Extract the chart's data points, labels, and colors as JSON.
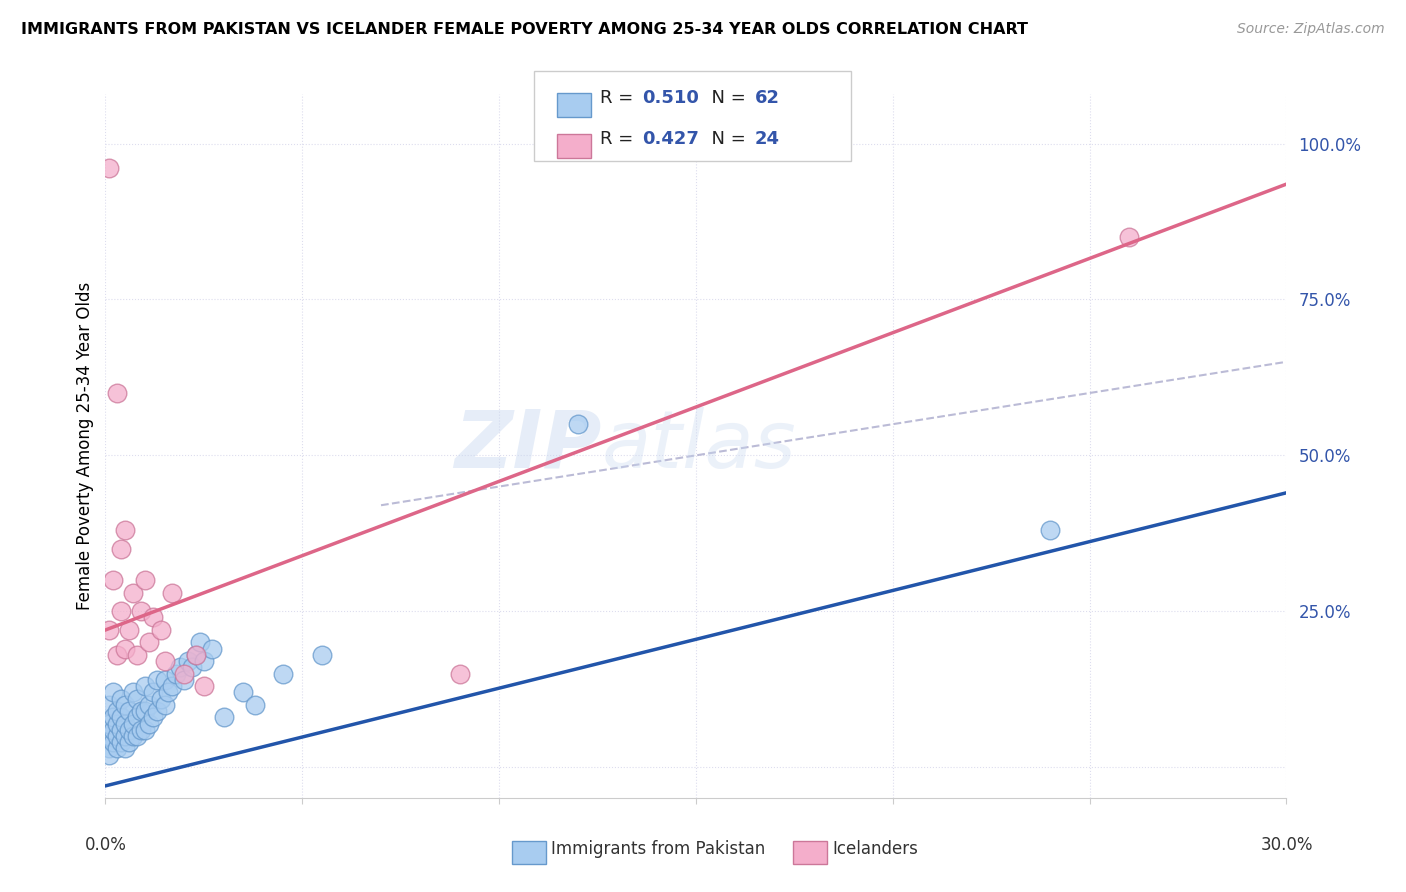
{
  "title": "IMMIGRANTS FROM PAKISTAN VS ICELANDER FEMALE POVERTY AMONG 25-34 YEAR OLDS CORRELATION CHART",
  "source": "Source: ZipAtlas.com",
  "ylabel": "Female Poverty Among 25-34 Year Olds",
  "xlim": [
    0.0,
    0.3
  ],
  "ylim": [
    -0.05,
    1.08
  ],
  "yticks": [
    0.0,
    0.25,
    0.5,
    0.75,
    1.0
  ],
  "ytick_labels": [
    "",
    "25.0%",
    "50.0%",
    "75.0%",
    "100.0%"
  ],
  "series1_name": "Immigrants from Pakistan",
  "series1_color": "#A8CCF0",
  "series1_edge_color": "#6699CC",
  "series1_line_color": "#2255AA",
  "series1_R": 0.51,
  "series1_N": 62,
  "series2_name": "Icelanders",
  "series2_color": "#F4AECB",
  "series2_edge_color": "#CC7799",
  "series2_line_color": "#DD6688",
  "series2_R": 0.427,
  "series2_N": 24,
  "ref_line_color": "#AAAACC",
  "background_color": "#FFFFFF",
  "grid_color": "#DDDDEE",
  "legend_color": "#3355AA",
  "blue_x": [
    0.001,
    0.001,
    0.001,
    0.001,
    0.001,
    0.002,
    0.002,
    0.002,
    0.002,
    0.003,
    0.003,
    0.003,
    0.003,
    0.004,
    0.004,
    0.004,
    0.004,
    0.005,
    0.005,
    0.005,
    0.005,
    0.006,
    0.006,
    0.006,
    0.007,
    0.007,
    0.007,
    0.008,
    0.008,
    0.008,
    0.009,
    0.009,
    0.01,
    0.01,
    0.01,
    0.011,
    0.011,
    0.012,
    0.012,
    0.013,
    0.013,
    0.014,
    0.015,
    0.015,
    0.016,
    0.017,
    0.018,
    0.019,
    0.02,
    0.021,
    0.022,
    0.023,
    0.024,
    0.025,
    0.027,
    0.03,
    0.035,
    0.038,
    0.045,
    0.055,
    0.12,
    0.24
  ],
  "blue_y": [
    0.03,
    0.05,
    0.07,
    0.1,
    0.02,
    0.04,
    0.06,
    0.08,
    0.12,
    0.03,
    0.05,
    0.07,
    0.09,
    0.04,
    0.06,
    0.08,
    0.11,
    0.03,
    0.05,
    0.07,
    0.1,
    0.04,
    0.06,
    0.09,
    0.05,
    0.07,
    0.12,
    0.05,
    0.08,
    0.11,
    0.06,
    0.09,
    0.06,
    0.09,
    0.13,
    0.07,
    0.1,
    0.08,
    0.12,
    0.09,
    0.14,
    0.11,
    0.1,
    0.14,
    0.12,
    0.13,
    0.15,
    0.16,
    0.14,
    0.17,
    0.16,
    0.18,
    0.2,
    0.17,
    0.19,
    0.08,
    0.12,
    0.1,
    0.15,
    0.18,
    0.55,
    0.38
  ],
  "pink_x": [
    0.001,
    0.001,
    0.002,
    0.003,
    0.003,
    0.004,
    0.004,
    0.005,
    0.005,
    0.006,
    0.007,
    0.008,
    0.009,
    0.01,
    0.011,
    0.012,
    0.014,
    0.015,
    0.017,
    0.02,
    0.023,
    0.025,
    0.09,
    0.26
  ],
  "pink_y": [
    0.22,
    0.96,
    0.3,
    0.18,
    0.6,
    0.25,
    0.35,
    0.19,
    0.38,
    0.22,
    0.28,
    0.18,
    0.25,
    0.3,
    0.2,
    0.24,
    0.22,
    0.17,
    0.28,
    0.15,
    0.18,
    0.13,
    0.15,
    0.85
  ],
  "pink_line_x0": 0.0,
  "pink_line_y0": 0.22,
  "pink_line_x1": 0.3,
  "pink_line_y1": 0.935,
  "blue_line_x0": 0.0,
  "blue_line_y0": -0.03,
  "blue_line_x1": 0.3,
  "blue_line_y1": 0.44,
  "ref_line_x0": 0.07,
  "ref_line_y0": 0.42,
  "ref_line_x1": 0.3,
  "ref_line_y1": 0.65
}
